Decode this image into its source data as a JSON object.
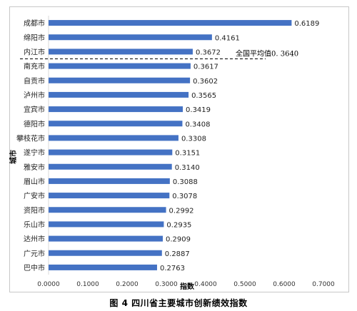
{
  "caption": "图 4 四川省主要城市创新绩效指数",
  "chart_data": {
    "type": "bar",
    "orientation": "horizontal",
    "categories": [
      "成都市",
      "绵阳市",
      "内江市",
      "南充市",
      "自贡市",
      "泸州市",
      "宜宾市",
      "德阳市",
      "攀枝花市",
      "遂宁市",
      "雅安市",
      "眉山市",
      "广安市",
      "资阳市",
      "乐山市",
      "达州市",
      "广元市",
      "巴中市"
    ],
    "values": [
      0.6189,
      0.4161,
      0.3672,
      0.3617,
      0.3602,
      0.3565,
      0.3419,
      0.3408,
      0.3308,
      0.3151,
      0.314,
      0.3088,
      0.3078,
      0.2992,
      0.2935,
      0.2909,
      0.2887,
      0.2763
    ],
    "value_labels": [
      "0.6189",
      "0.4161",
      "0.3672",
      "0.3617",
      "0.3602",
      "0.3565",
      "0.3419",
      "0.3408",
      "0.3308",
      "0.3151",
      "0.3140",
      "0.3088",
      "0.3078",
      "0.2992",
      "0.2935",
      "0.2909",
      "0.2887",
      "0.2763"
    ],
    "xlabel": "指数",
    "ylabel": "城市",
    "xlim": [
      0,
      0.7
    ],
    "xticks": [
      "0.0000",
      "0.1000",
      "0.2000",
      "0.3000",
      "0.4000",
      "0.5000",
      "0.6000",
      "0.7000"
    ],
    "bar_color": "#4472C4",
    "grid": false,
    "reference_line": {
      "label": "全国平均值0. 3640",
      "between": [
        "内江市",
        "南充市"
      ]
    }
  }
}
